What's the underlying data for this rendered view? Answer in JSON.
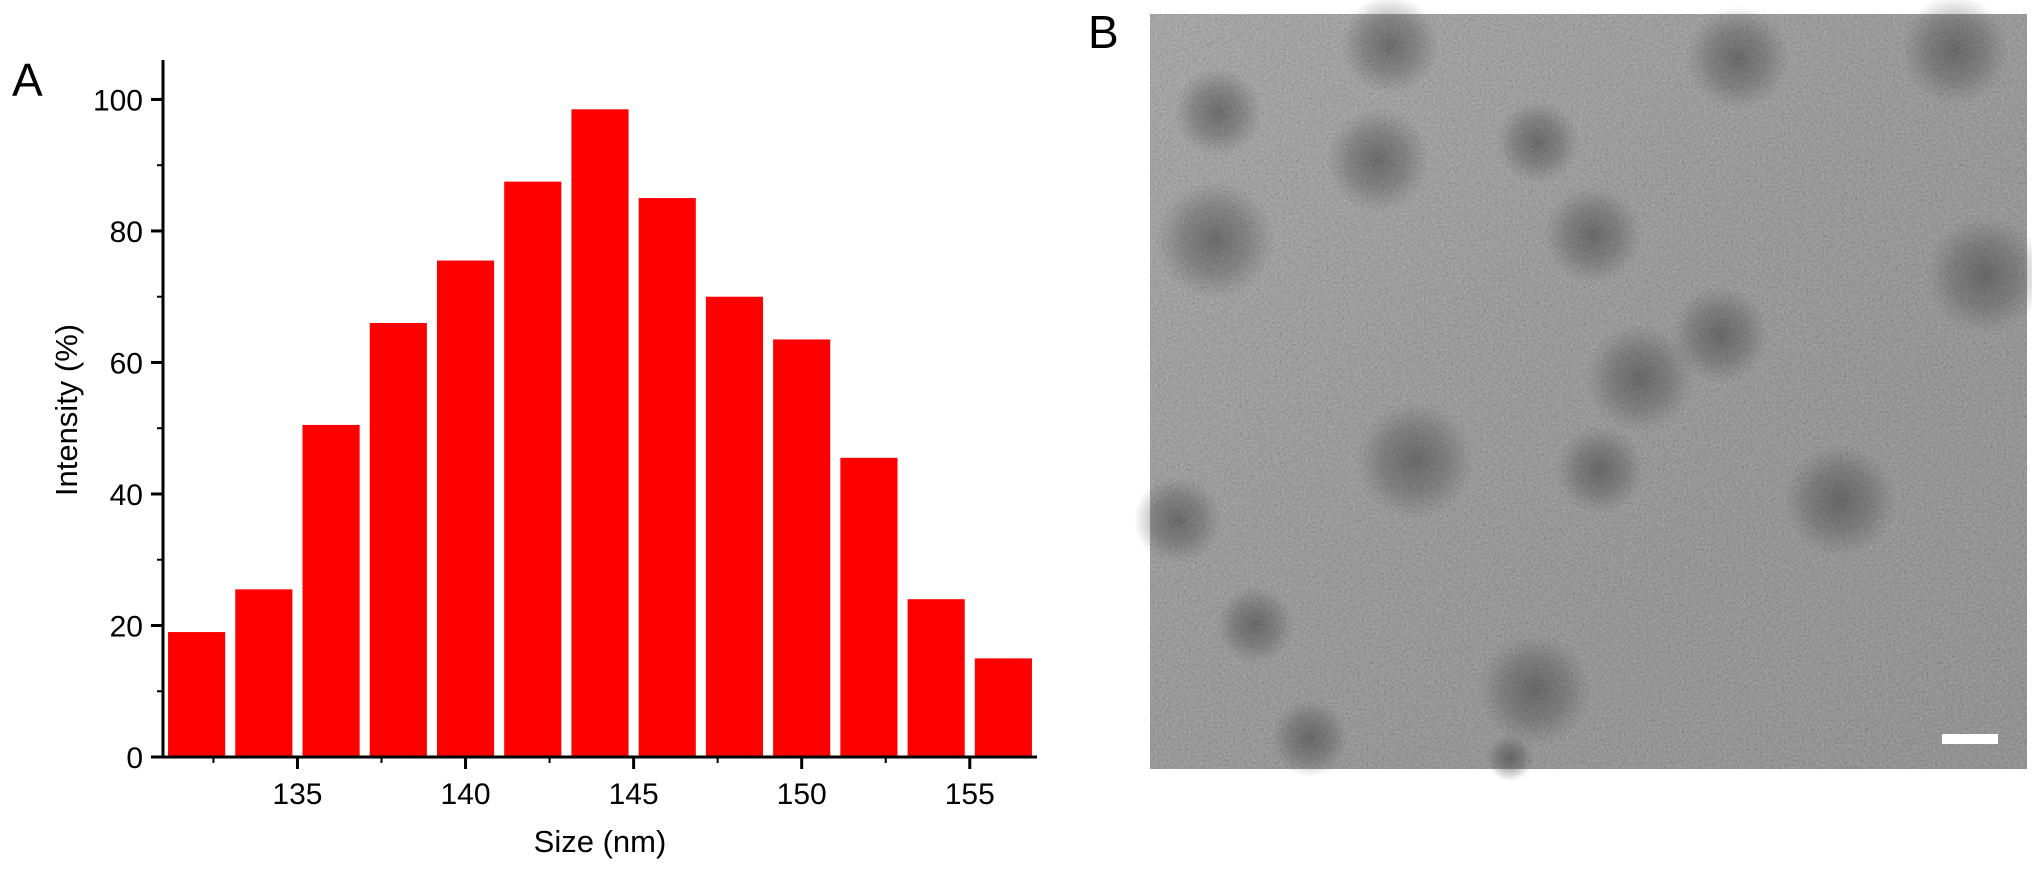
{
  "panels": {
    "a_label": "A",
    "b_label": "B"
  },
  "colors": {
    "bar": "#ff0000",
    "axis": "#000000"
  },
  "chart_data": {
    "type": "bar",
    "x": [
      132,
      134,
      136,
      138,
      140,
      142,
      144,
      146,
      148,
      150,
      152,
      154,
      156
    ],
    "values": [
      19,
      25.5,
      50.5,
      66,
      75.5,
      87.5,
      98.5,
      85,
      70,
      63.5,
      45.5,
      24,
      15
    ],
    "bar_width_units": 1.7,
    "xlabel": "Size (nm)",
    "ylabel": "Intensity (%)",
    "xlim": [
      131,
      157
    ],
    "ylim": [
      0,
      106
    ],
    "xticks": [
      135,
      140,
      145,
      150,
      155
    ],
    "yticks": [
      0,
      20,
      40,
      60,
      80,
      100
    ],
    "grid": false,
    "legend": "none"
  },
  "micrograph": {
    "description_icon": "tem-micrograph-image",
    "scale_bar_icon": "scale-bar-icon"
  }
}
